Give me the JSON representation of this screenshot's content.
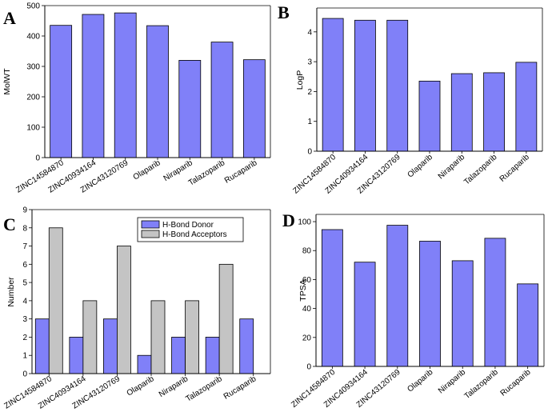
{
  "figure": {
    "colors": {
      "bar_primary": "#8080f8",
      "bar_secondary": "#c4c4c4",
      "stroke": "#000000"
    }
  },
  "chart_data": [
    {
      "panel": "A",
      "type": "bar",
      "title": "",
      "xlabel": "",
      "ylabel": "MolWT",
      "ylim": [
        0,
        500
      ],
      "yticks": [
        0,
        100,
        200,
        300,
        400,
        500
      ],
      "categories": [
        "ZINC14584870",
        "ZINC40934164",
        "ZINC43120769",
        "Olaparib",
        "Niraparib",
        "Talazoparib",
        "Rucaparib"
      ],
      "series": [
        {
          "name": "MolWT",
          "values": [
            435,
            471,
            476,
            434,
            320,
            380,
            322
          ]
        }
      ]
    },
    {
      "panel": "B",
      "type": "bar",
      "title": "",
      "xlabel": "",
      "ylabel": "LogP",
      "ylim": [
        0,
        4.8
      ],
      "yticks": [
        0,
        1,
        2,
        3,
        4
      ],
      "categories": [
        "ZINC14584870",
        "ZINC40934164",
        "ZINC43120769",
        "Olaparib",
        "Niraparib",
        "Talazoparib",
        "Rucaparib"
      ],
      "series": [
        {
          "name": "LogP",
          "values": [
            4.45,
            4.39,
            4.39,
            2.35,
            2.6,
            2.63,
            2.98
          ]
        }
      ]
    },
    {
      "panel": "C",
      "type": "bar",
      "title": "",
      "xlabel": "",
      "ylabel": "Number",
      "ylim": [
        0,
        9
      ],
      "yticks": [
        0,
        1,
        2,
        3,
        4,
        5,
        6,
        7,
        8,
        9
      ],
      "legend_position": "top-center",
      "categories": [
        "ZINC14584870",
        "ZINC40934164",
        "ZINC43120769",
        "Olaparib",
        "Niraparib",
        "Talazoparib",
        "Rucaparib"
      ],
      "series": [
        {
          "name": "H-Bond Donor",
          "values": [
            3,
            2,
            3,
            1,
            2,
            2,
            3
          ]
        },
        {
          "name": "H-Bond Acceptors",
          "values": [
            8,
            4,
            7,
            4,
            4,
            6,
            0
          ]
        }
      ]
    },
    {
      "panel": "D",
      "type": "bar",
      "title": "",
      "xlabel": "",
      "ylabel": "TPSA",
      "ylim": [
        0,
        105
      ],
      "yticks": [
        0,
        20,
        40,
        60,
        80,
        100
      ],
      "categories": [
        "ZINC14584870",
        "ZINC40934164",
        "ZINC43120769",
        "Olaparib",
        "Niraparib",
        "Talazoparib",
        "Rucaparib"
      ],
      "series": [
        {
          "name": "TPSA",
          "values": [
            94.5,
            72,
            97.5,
            86.5,
            73,
            88.5,
            57
          ]
        }
      ]
    }
  ]
}
